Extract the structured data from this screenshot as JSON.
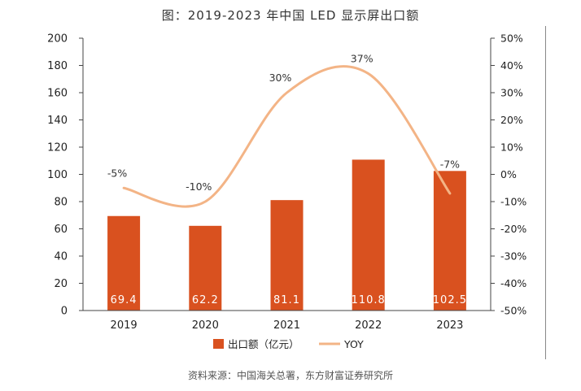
{
  "title": "图：2019-2023 年中国 LED 显示屏出口额",
  "source": "资料来源：中国海关总署，东方财富证券研究所",
  "colors": {
    "bar": "#d9511f",
    "line": "#f3b486",
    "axis": "#444444",
    "barLabel": "#ffffff"
  },
  "chart_data": {
    "type": "bar+line",
    "categories": [
      "2019",
      "2020",
      "2021",
      "2022",
      "2023"
    ],
    "series": [
      {
        "name": "出口额（亿元）",
        "type": "bar",
        "axis": "left",
        "values": [
          69.4,
          62.2,
          81.1,
          110.8,
          102.5
        ],
        "labels": [
          "69.4",
          "62.2",
          "81.1",
          "110.8",
          "102.5"
        ]
      },
      {
        "name": "YOY",
        "type": "line",
        "axis": "right",
        "values": [
          -5,
          -10,
          30,
          37,
          -7
        ],
        "labels": [
          "-5%",
          "-10%",
          "30%",
          "37%",
          "-7%"
        ]
      }
    ],
    "y_left": {
      "range": [
        0,
        200
      ],
      "ticks": [
        "0",
        "20",
        "40",
        "60",
        "80",
        "100",
        "120",
        "140",
        "160",
        "180",
        "200"
      ]
    },
    "y_right": {
      "range": [
        -50,
        50
      ],
      "ticks": [
        "-50%",
        "-40%",
        "-30%",
        "-20%",
        "-10%",
        "0%",
        "10%",
        "20%",
        "30%",
        "40%",
        "50%"
      ]
    },
    "legend": [
      {
        "label": "出口额（亿元）",
        "kind": "bar"
      },
      {
        "label": "YOY",
        "kind": "line"
      }
    ],
    "legend_position": "bottom"
  }
}
